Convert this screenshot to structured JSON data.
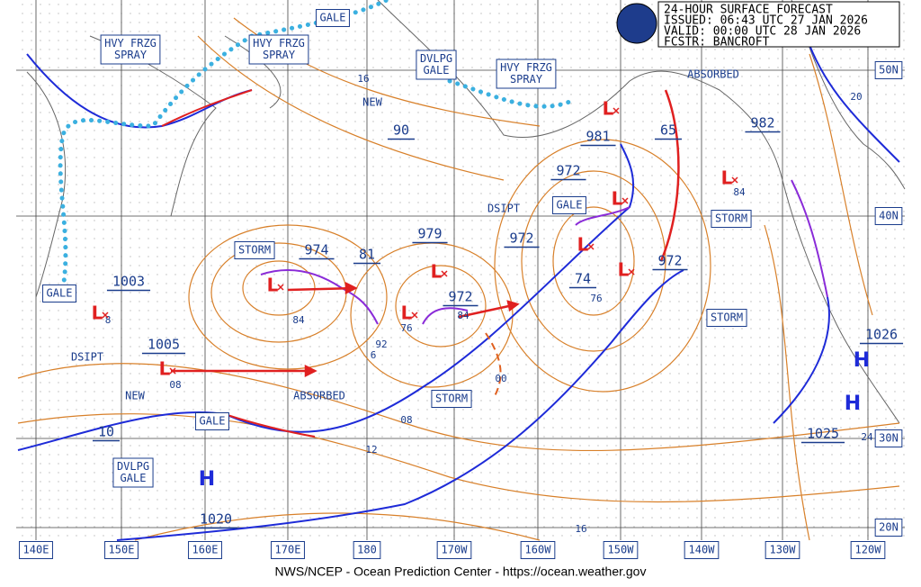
{
  "header": [
    "24-HOUR SURFACE FORECAST",
    "ISSUED: 06:43 UTC 27 JAN 2026",
    "VALID: 00:00 UTC 28 JAN 2026",
    "FCSTR: BANCROFT"
  ],
  "footer": "NWS/NCEP - Ocean Prediction Center - https://ocean.weather.gov",
  "longitude_labels": [
    "140E",
    "150E",
    "160E",
    "170E",
    "180",
    "170W",
    "160W",
    "150W",
    "140W",
    "130W",
    "120W"
  ],
  "latitude_labels": [
    "50N",
    "40N",
    "30N",
    "20N"
  ],
  "warnings": [
    {
      "lines": [
        "GALE"
      ]
    },
    {
      "lines": [
        "HVY FRZG",
        "SPRAY"
      ]
    },
    {
      "lines": [
        "HVY FRZG",
        "SPRAY"
      ]
    },
    {
      "lines": [
        "DVLPG",
        "GALE"
      ]
    },
    {
      "lines": [
        "HVY FRZG",
        "SPRAY"
      ]
    },
    {
      "lines": [
        "STORM"
      ]
    },
    {
      "lines": [
        "GALE"
      ]
    },
    {
      "lines": [
        "STORM"
      ]
    },
    {
      "lines": [
        "STORM"
      ]
    },
    {
      "lines": [
        "GALE"
      ]
    },
    {
      "lines": [
        "STORM"
      ]
    },
    {
      "lines": [
        "GALE"
      ]
    },
    {
      "lines": [
        "DVLPG",
        "GALE"
      ]
    }
  ],
  "pressure_labels": [
    "974",
    "81",
    "979",
    "972",
    "972",
    "981",
    "65",
    "982",
    "972",
    "74",
    "972",
    "1003",
    "1005",
    "10",
    "90",
    "1026",
    "1025",
    "1020"
  ],
  "isobar_labels": [
    "16",
    "84",
    "76",
    "84",
    "92",
    "6",
    "00",
    "08",
    "08",
    "12",
    "16",
    "20",
    "24",
    "76",
    "8",
    "84"
  ],
  "notes": [
    "NEW",
    "NEW",
    "DSIPT",
    "DSIPT",
    "ABSORBED",
    "ABSORBED"
  ],
  "highs": [
    "H",
    "H",
    "H"
  ],
  "lows": [
    "L",
    "L",
    "L",
    "L",
    "L",
    "L",
    "L",
    "L",
    "L",
    "L"
  ]
}
